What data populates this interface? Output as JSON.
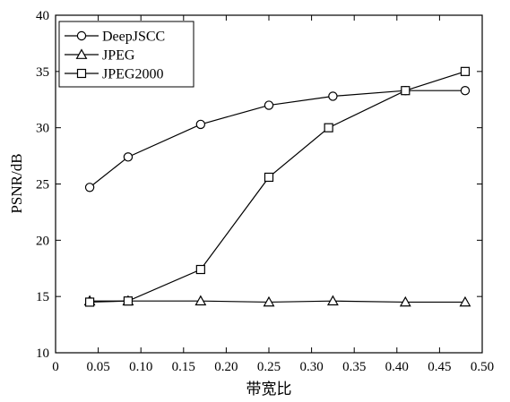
{
  "chart_data": {
    "type": "line",
    "title": "",
    "xlabel": "带宽比",
    "ylabel": "PSNR/dB",
    "xlim": [
      0,
      0.5
    ],
    "ylim": [
      10,
      40
    ],
    "xticks": [
      0,
      0.05,
      0.1,
      0.15,
      0.2,
      0.25,
      0.3,
      0.35,
      0.4,
      0.45,
      0.5
    ],
    "xtick_labels": [
      "0",
      "0.05",
      "0.10",
      "0.15",
      "0.20",
      "0.25",
      "0.30",
      "0.35",
      "0.40",
      "0.45",
      "0.50"
    ],
    "yticks": [
      10,
      15,
      20,
      25,
      30,
      35,
      40
    ],
    "ytick_labels": [
      "10",
      "15",
      "20",
      "25",
      "30",
      "35",
      "40"
    ],
    "grid": false,
    "legend_position": "top-left",
    "series": [
      {
        "name": "DeepJSCC",
        "marker": "circle",
        "x": [
          0.04,
          0.085,
          0.17,
          0.25,
          0.325,
          0.41,
          0.48
        ],
        "y": [
          24.7,
          27.4,
          30.3,
          32.0,
          32.8,
          33.3,
          33.3
        ]
      },
      {
        "name": "JPEG",
        "marker": "triangle",
        "x": [
          0.04,
          0.085,
          0.17,
          0.25,
          0.325,
          0.41,
          0.48
        ],
        "y": [
          14.6,
          14.6,
          14.6,
          14.5,
          14.6,
          14.5,
          14.5
        ]
      },
      {
        "name": "JPEG2000",
        "marker": "square",
        "x": [
          0.04,
          0.085,
          0.17,
          0.25,
          0.32,
          0.41,
          0.48
        ],
        "y": [
          14.5,
          14.6,
          17.4,
          25.6,
          30.0,
          33.3,
          35.0
        ]
      }
    ]
  }
}
